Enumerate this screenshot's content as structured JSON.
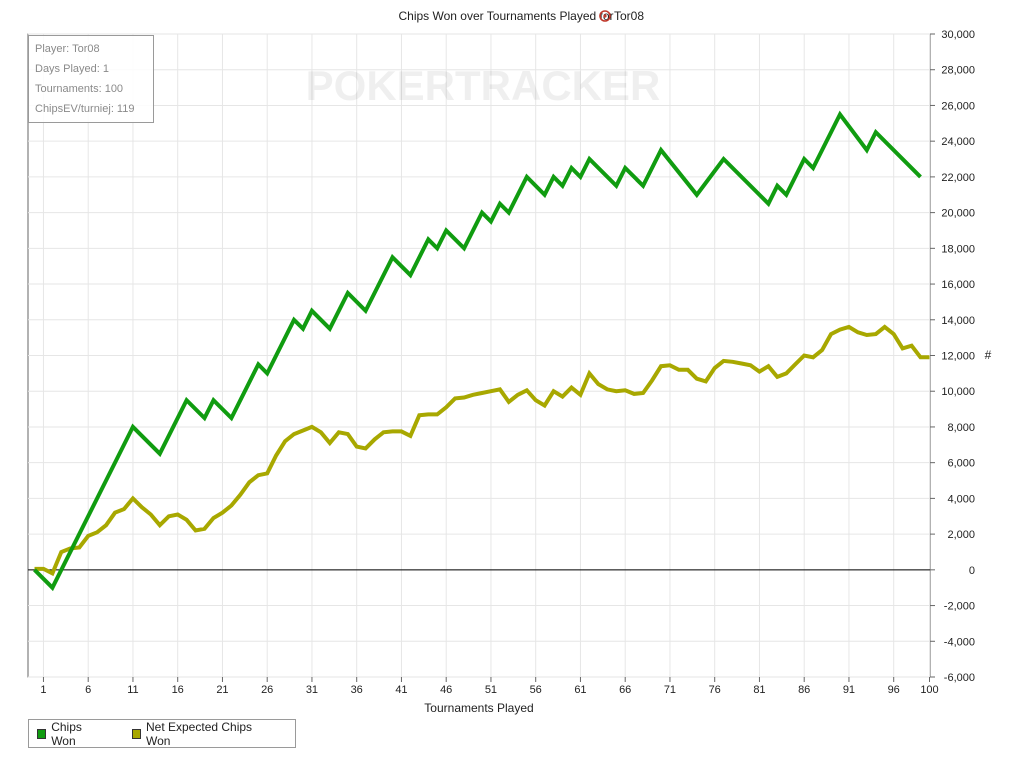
{
  "info": {
    "player": "Player: Tor08",
    "days": "Days Played: 1",
    "tournaments": "Tournaments: 100",
    "chipsev": "ChipsEV/turniej: 119"
  },
  "watermark": "POKERTRACKER",
  "colors": {
    "chips_won": "#109c10",
    "net_expected": "#a8a800",
    "grid": "#e6e6e6",
    "zero_line": "#000000"
  },
  "chart_data": {
    "type": "line",
    "title_prefix": "Chips Won over Tournaments Played for",
    "title_player": "Tor08",
    "title_icon": "poker-chip-icon",
    "xlabel": "Tournaments Played",
    "ylabel": "#",
    "xlim": [
      0,
      100
    ],
    "ylim": [
      -6000,
      30000
    ],
    "x_ticks": [
      1,
      6,
      11,
      16,
      21,
      26,
      31,
      36,
      41,
      46,
      51,
      56,
      61,
      66,
      71,
      76,
      81,
      86,
      91,
      96,
      100
    ],
    "y_ticks": [
      -6000,
      -4000,
      -2000,
      0,
      2000,
      4000,
      6000,
      8000,
      10000,
      12000,
      14000,
      16000,
      18000,
      20000,
      22000,
      24000,
      26000,
      28000,
      30000
    ],
    "y_tick_labels": [
      "-6,000",
      "-4,000",
      "-2,000",
      "0",
      "2,000",
      "4,000",
      "6,000",
      "8,000",
      "10,000",
      "12,000",
      "14,000",
      "16,000",
      "18,000",
      "20,000",
      "22,000",
      "24,000",
      "26,000",
      "28,000",
      "30,000"
    ],
    "grid": true,
    "legend_position": "bottom-left",
    "series": [
      {
        "name": "Chips Won",
        "color": "#109c10",
        "points": [
          [
            0,
            0
          ],
          [
            1,
            -500
          ],
          [
            2,
            -1000
          ],
          [
            11,
            8000
          ],
          [
            14,
            6500
          ],
          [
            17,
            9500
          ],
          [
            19,
            8500
          ],
          [
            20,
            9500
          ],
          [
            22,
            8500
          ],
          [
            25,
            11500
          ],
          [
            26,
            11000
          ],
          [
            29,
            14000
          ],
          [
            30,
            13500
          ],
          [
            31,
            14500
          ],
          [
            33,
            13500
          ],
          [
            35,
            15500
          ],
          [
            37,
            14500
          ],
          [
            40,
            17500
          ],
          [
            42,
            16500
          ],
          [
            44,
            18500
          ],
          [
            45,
            18000
          ],
          [
            46,
            19000
          ],
          [
            48,
            18000
          ],
          [
            50,
            20000
          ],
          [
            51,
            19500
          ],
          [
            52,
            20500
          ],
          [
            53,
            20000
          ],
          [
            55,
            22000
          ],
          [
            57,
            21000
          ],
          [
            58,
            22000
          ],
          [
            59,
            21500
          ],
          [
            60,
            22500
          ],
          [
            61,
            22000
          ],
          [
            62,
            23000
          ],
          [
            65,
            21500
          ],
          [
            66,
            22500
          ],
          [
            68,
            21500
          ],
          [
            70,
            23500
          ],
          [
            74,
            21000
          ],
          [
            77,
            23000
          ],
          [
            82,
            20500
          ],
          [
            83,
            21500
          ],
          [
            84,
            21000
          ],
          [
            86,
            23000
          ],
          [
            87,
            22500
          ],
          [
            90,
            25500
          ],
          [
            93,
            23500
          ],
          [
            94,
            24500
          ],
          [
            99,
            22000
          ]
        ]
      },
      {
        "name": "Net Expected Chips Won",
        "color": "#a8a800",
        "points": [
          [
            0,
            50
          ],
          [
            1,
            50
          ],
          [
            2,
            -200
          ],
          [
            3,
            1000
          ],
          [
            4,
            1200
          ],
          [
            5,
            1250
          ],
          [
            6,
            1900
          ],
          [
            7,
            2100
          ],
          [
            8,
            2500
          ],
          [
            9,
            3200
          ],
          [
            10,
            3400
          ],
          [
            11,
            4000
          ],
          [
            12,
            3500
          ],
          [
            13,
            3100
          ],
          [
            14,
            2500
          ],
          [
            15,
            3000
          ],
          [
            16,
            3100
          ],
          [
            17,
            2800
          ],
          [
            18,
            2200
          ],
          [
            19,
            2300
          ],
          [
            20,
            2900
          ],
          [
            21,
            3200
          ],
          [
            22,
            3600
          ],
          [
            23,
            4200
          ],
          [
            24,
            4900
          ],
          [
            25,
            5300
          ],
          [
            26,
            5400
          ],
          [
            27,
            6400
          ],
          [
            28,
            7200
          ],
          [
            29,
            7600
          ],
          [
            30,
            7800
          ],
          [
            31,
            8000
          ],
          [
            32,
            7700
          ],
          [
            33,
            7100
          ],
          [
            34,
            7700
          ],
          [
            35,
            7600
          ],
          [
            36,
            6900
          ],
          [
            37,
            6800
          ],
          [
            38,
            7300
          ],
          [
            39,
            7700
          ],
          [
            40,
            7750
          ],
          [
            41,
            7750
          ],
          [
            42,
            7500
          ],
          [
            43,
            8650
          ],
          [
            44,
            8700
          ],
          [
            45,
            8700
          ],
          [
            46,
            9100
          ],
          [
            47,
            9600
          ],
          [
            48,
            9650
          ],
          [
            49,
            9800
          ],
          [
            50,
            9900
          ],
          [
            51,
            10000
          ],
          [
            52,
            10100
          ],
          [
            53,
            9400
          ],
          [
            54,
            9800
          ],
          [
            55,
            10050
          ],
          [
            56,
            9500
          ],
          [
            57,
            9200
          ],
          [
            58,
            10000
          ],
          [
            59,
            9700
          ],
          [
            60,
            10200
          ],
          [
            61,
            9800
          ],
          [
            62,
            11000
          ],
          [
            63,
            10400
          ],
          [
            64,
            10100
          ],
          [
            65,
            10000
          ],
          [
            66,
            10050
          ],
          [
            67,
            9850
          ],
          [
            68,
            9900
          ],
          [
            69,
            10600
          ],
          [
            70,
            11400
          ],
          [
            71,
            11450
          ],
          [
            72,
            11200
          ],
          [
            73,
            11200
          ],
          [
            74,
            10700
          ],
          [
            75,
            10550
          ],
          [
            76,
            11300
          ],
          [
            77,
            11700
          ],
          [
            78,
            11650
          ],
          [
            79,
            11550
          ],
          [
            80,
            11450
          ],
          [
            81,
            11100
          ],
          [
            82,
            11400
          ],
          [
            83,
            10800
          ],
          [
            84,
            11000
          ],
          [
            85,
            11500
          ],
          [
            86,
            12000
          ],
          [
            87,
            11900
          ],
          [
            88,
            12300
          ],
          [
            89,
            13200
          ],
          [
            90,
            13450
          ],
          [
            91,
            13600
          ],
          [
            92,
            13300
          ],
          [
            93,
            13150
          ],
          [
            94,
            13200
          ],
          [
            95,
            13600
          ],
          [
            96,
            13200
          ],
          [
            97,
            12400
          ],
          [
            98,
            12550
          ],
          [
            99,
            11900
          ],
          [
            100,
            11900
          ]
        ]
      }
    ]
  }
}
